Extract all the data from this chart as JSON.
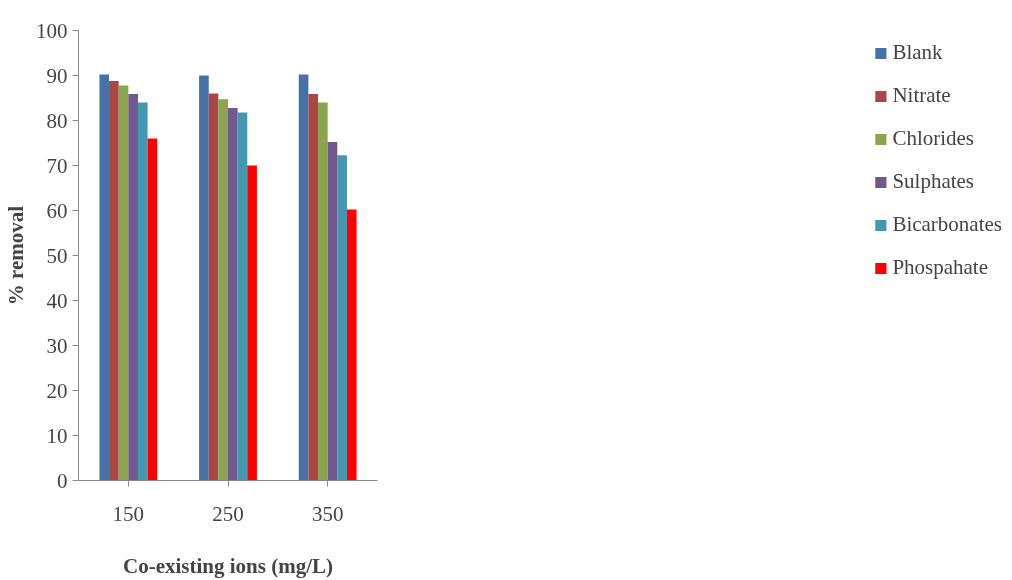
{
  "chart_data": {
    "type": "bar",
    "xlabel": "Co-existing ions (mg/L)",
    "ylabel": "% removal",
    "categories": [
      "150",
      "250",
      "350"
    ],
    "series": [
      {
        "name": "Blank",
        "color": "#4572a7",
        "values": [
          90.2,
          90,
          90.2
        ]
      },
      {
        "name": "Nitrate",
        "color": "#aa4643",
        "values": [
          88.8,
          86,
          85.9
        ]
      },
      {
        "name": "Chlorides",
        "color": "#89a54e",
        "values": [
          87.8,
          84.7,
          84
        ]
      },
      {
        "name": "Sulphates",
        "color": "#71588f",
        "values": [
          85.9,
          82.8,
          75.2
        ]
      },
      {
        "name": "Bicarbonates",
        "color": "#4198af",
        "values": [
          84,
          81.8,
          72.3
        ]
      },
      {
        "name": "Phospahate",
        "color": "#ff0000",
        "values": [
          76,
          70,
          60.2
        ]
      }
    ],
    "ylim": [
      0,
      100
    ],
    "yticks": [
      0,
      10,
      20,
      30,
      40,
      50,
      60,
      70,
      80,
      90,
      100
    ],
    "grid": false,
    "legend": "right"
  }
}
